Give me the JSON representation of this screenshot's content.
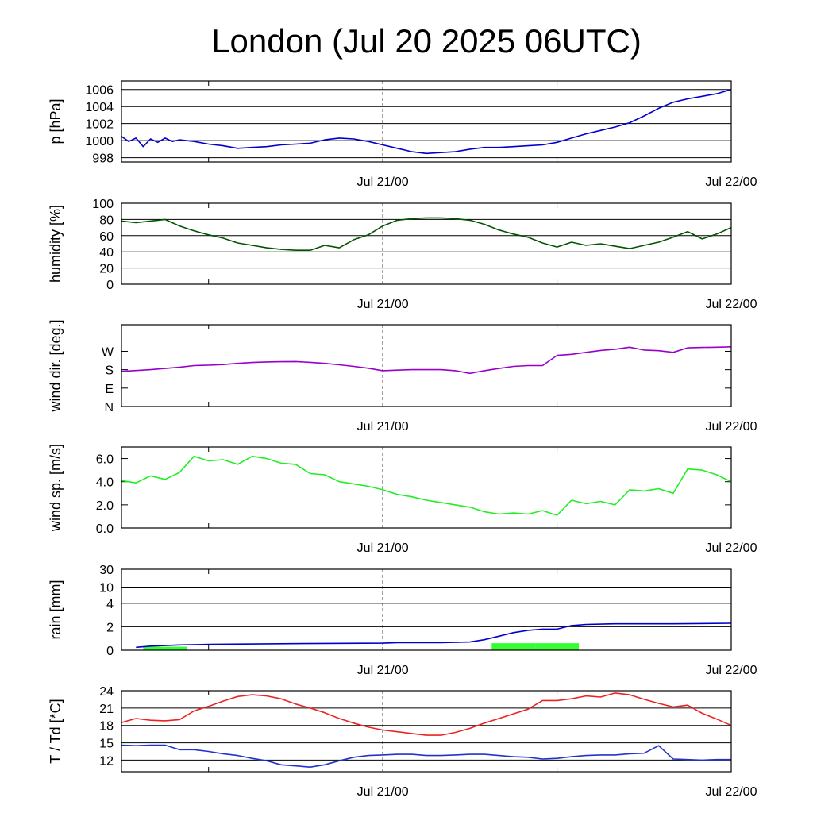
{
  "title": "London (Jul 20 2025 06UTC)",
  "time_axis": {
    "start_hour": 6,
    "end_hour": 48,
    "tick_labels": [
      {
        "hour": 24,
        "label": "Jul 21/00"
      },
      {
        "hour": 48,
        "label": "Jul 22/00"
      }
    ],
    "minor_ticks": [
      12,
      36
    ],
    "dashed_line_hour": 24
  },
  "chart_data": [
    {
      "type": "line",
      "ylabel": "p [hPa]",
      "ylim": [
        997.5,
        1007
      ],
      "yticks": [
        {
          "v": 998,
          "label": "998"
        },
        {
          "v": 1000,
          "label": "1000"
        },
        {
          "v": 1002,
          "label": "1002"
        },
        {
          "v": 1004,
          "label": "1004"
        },
        {
          "v": 1006,
          "label": "1006"
        }
      ],
      "grid": true,
      "series": [
        {
          "color": "#0000cc",
          "x": [
            6,
            6.5,
            7,
            7.5,
            8,
            8.5,
            9,
            9.5,
            10,
            11,
            12,
            13,
            14,
            15,
            16,
            17,
            18,
            19,
            20,
            21,
            22,
            23,
            24,
            25,
            26,
            27,
            28,
            29,
            30,
            31,
            32,
            33,
            34,
            35,
            36,
            37,
            38,
            39,
            40,
            41,
            42,
            43,
            44,
            45,
            46,
            47,
            48
          ],
          "y": [
            1000.5,
            999.9,
            1000.3,
            999.3,
            1000.2,
            999.8,
            1000.3,
            999.9,
            1000.1,
            999.9,
            999.6,
            999.4,
            999.1,
            999.2,
            999.3,
            999.5,
            999.6,
            999.7,
            1000.1,
            1000.3,
            1000.2,
            999.9,
            999.5,
            999.1,
            998.7,
            998.5,
            998.6,
            998.7,
            999.0,
            999.2,
            999.2,
            999.3,
            999.4,
            999.5,
            999.8,
            1000.3,
            1000.8,
            1001.2,
            1001.6,
            1002.1,
            1002.9,
            1003.8,
            1004.5,
            1004.9,
            1005.2,
            1005.5,
            1006.0
          ]
        }
      ]
    },
    {
      "type": "line",
      "ylabel": "humidity [%]",
      "ylim": [
        0,
        100
      ],
      "yticks": [
        {
          "v": 0,
          "label": "0"
        },
        {
          "v": 20,
          "label": "20"
        },
        {
          "v": 40,
          "label": "40"
        },
        {
          "v": 60,
          "label": "60"
        },
        {
          "v": 80,
          "label": "80"
        },
        {
          "v": 100,
          "label": "100"
        }
      ],
      "grid": true,
      "series": [
        {
          "color": "#005500",
          "x": [
            6,
            7,
            8,
            9,
            10,
            11,
            12,
            13,
            14,
            15,
            16,
            17,
            18,
            19,
            20,
            21,
            22,
            23,
            24,
            25,
            26,
            27,
            28,
            29,
            30,
            31,
            32,
            33,
            34,
            35,
            36,
            37,
            38,
            39,
            40,
            41,
            42,
            43,
            44,
            45,
            46,
            47,
            48
          ],
          "y": [
            78,
            76,
            78,
            80,
            72,
            66,
            61,
            57,
            51,
            48,
            45,
            43,
            42,
            42,
            48,
            45,
            55,
            61,
            72,
            79,
            81,
            82,
            82,
            81,
            79,
            74,
            67,
            62,
            58,
            51,
            46,
            52,
            48,
            50,
            47,
            44,
            48,
            52,
            58,
            65,
            56,
            62,
            70
          ]
        }
      ]
    },
    {
      "type": "line",
      "ylabel": "wind dir. [deg.]",
      "ylim": [
        0,
        400
      ],
      "yticks": [
        {
          "v": 0,
          "label": "N"
        },
        {
          "v": 90,
          "label": "E"
        },
        {
          "v": 180,
          "label": "S"
        },
        {
          "v": 270,
          "label": "W"
        }
      ],
      "grid": false,
      "series": [
        {
          "color": "#9900cc",
          "x": [
            6,
            7,
            8,
            9,
            10,
            11,
            12,
            13,
            14,
            15,
            16,
            17,
            18,
            19,
            20,
            21,
            22,
            23,
            24,
            25,
            26,
            27,
            28,
            29,
            30,
            31,
            32,
            33,
            34,
            35,
            36,
            37,
            38,
            39,
            40,
            41,
            42,
            43,
            44,
            45,
            46,
            47,
            48
          ],
          "y": [
            172,
            176,
            180,
            186,
            192,
            200,
            202,
            205,
            211,
            215,
            218,
            219,
            220,
            216,
            211,
            204,
            196,
            187,
            175,
            178,
            180,
            180,
            180,
            175,
            162,
            175,
            186,
            196,
            200,
            200,
            250,
            255,
            265,
            274,
            280,
            290,
            276,
            273,
            265,
            287,
            289,
            290,
            292
          ]
        }
      ]
    },
    {
      "type": "line",
      "ylabel": "wind sp. [m/s]",
      "ylim": [
        0,
        7
      ],
      "yticks": [
        {
          "v": 0,
          "label": "0.0"
        },
        {
          "v": 2,
          "label": "2.0"
        },
        {
          "v": 4,
          "label": "4.0"
        },
        {
          "v": 6,
          "label": "6.0"
        }
      ],
      "grid": false,
      "series": [
        {
          "color": "#22ee22",
          "x": [
            6,
            7,
            8,
            9,
            10,
            11,
            12,
            13,
            14,
            15,
            16,
            17,
            18,
            19,
            20,
            21,
            22,
            23,
            24,
            25,
            26,
            27,
            28,
            29,
            30,
            31,
            32,
            33,
            34,
            35,
            36,
            37,
            38,
            39,
            40,
            41,
            42,
            43,
            44,
            45,
            46,
            47,
            48
          ],
          "y": [
            4.1,
            3.9,
            4.5,
            4.2,
            4.8,
            6.2,
            5.8,
            5.9,
            5.5,
            6.2,
            6.0,
            5.6,
            5.5,
            4.7,
            4.6,
            4.0,
            3.8,
            3.6,
            3.3,
            2.9,
            2.7,
            2.4,
            2.2,
            2.0,
            1.8,
            1.4,
            1.2,
            1.3,
            1.2,
            1.5,
            1.1,
            2.4,
            2.1,
            2.3,
            2.0,
            3.3,
            3.2,
            3.4,
            3.0,
            5.1,
            5.0,
            4.6,
            4.0
          ]
        }
      ]
    },
    {
      "type": "bar+line",
      "ylabel": "rain [mm]",
      "ylim": [
        0,
        30
      ],
      "yticks": [
        {
          "v": 0,
          "label": "0"
        },
        {
          "v": 2,
          "label": "2"
        },
        {
          "v": 4,
          "label": "4"
        },
        {
          "v": 10,
          "label": "10"
        },
        {
          "v": 30,
          "label": "30"
        }
      ],
      "scale": "nonlinear",
      "grid": true,
      "bars": {
        "color": "#33ff33",
        "x_start": [
          7.5,
          31.5,
          34.5
        ],
        "x_end": [
          10.5,
          34.5,
          37.5
        ],
        "values": [
          0.3,
          0.6,
          0.6
        ]
      },
      "series": [
        {
          "color": "#0000cc",
          "x": [
            7,
            8,
            9,
            10,
            12,
            16,
            20,
            24,
            25,
            28,
            30,
            31,
            32,
            33,
            34,
            35,
            36,
            37,
            38,
            40,
            44,
            48
          ],
          "y": [
            0.25,
            0.35,
            0.4,
            0.45,
            0.5,
            0.55,
            0.58,
            0.6,
            0.65,
            0.65,
            0.7,
            0.9,
            1.2,
            1.5,
            1.7,
            1.8,
            1.8,
            2.1,
            2.2,
            2.25,
            2.25,
            2.3
          ]
        }
      ]
    },
    {
      "type": "line",
      "ylabel": "T / Td [*C]",
      "ylim": [
        10,
        24
      ],
      "yticks": [
        {
          "v": 12,
          "label": "12"
        },
        {
          "v": 15,
          "label": "15"
        },
        {
          "v": 18,
          "label": "18"
        },
        {
          "v": 21,
          "label": "21"
        },
        {
          "v": 24,
          "label": "24"
        }
      ],
      "grid": true,
      "series": [
        {
          "color": "#ee2222",
          "x": [
            6,
            7,
            8,
            9,
            10,
            11,
            12,
            13,
            14,
            15,
            16,
            17,
            18,
            19,
            20,
            21,
            22,
            23,
            24,
            25,
            26,
            27,
            28,
            29,
            30,
            31,
            32,
            33,
            34,
            35,
            36,
            37,
            38,
            39,
            40,
            41,
            42,
            43,
            44,
            45,
            46,
            47,
            48
          ],
          "y": [
            18.5,
            19.2,
            18.9,
            18.8,
            19.0,
            20.5,
            21.3,
            22.2,
            23.0,
            23.3,
            23.1,
            22.6,
            21.7,
            21.0,
            20.2,
            19.2,
            18.4,
            17.7,
            17.2,
            16.9,
            16.6,
            16.3,
            16.3,
            16.8,
            17.5,
            18.4,
            19.2,
            20.0,
            20.8,
            22.3,
            22.3,
            22.6,
            23.1,
            22.9,
            23.6,
            23.3,
            22.5,
            21.8,
            21.2,
            21.5,
            20.1,
            19.1,
            18.0
          ]
        },
        {
          "color": "#2233cc",
          "x": [
            6,
            7,
            8,
            9,
            10,
            11,
            12,
            13,
            14,
            15,
            16,
            17,
            18,
            19,
            20,
            21,
            22,
            23,
            24,
            25,
            26,
            27,
            28,
            29,
            30,
            31,
            32,
            33,
            34,
            35,
            36,
            37,
            38,
            39,
            40,
            41,
            42,
            43,
            44,
            45,
            46,
            47,
            48
          ],
          "y": [
            14.6,
            14.5,
            14.6,
            14.6,
            13.8,
            13.8,
            13.5,
            13.1,
            12.8,
            12.3,
            11.9,
            11.2,
            11.0,
            10.8,
            11.2,
            11.9,
            12.5,
            12.8,
            12.9,
            13.0,
            13.0,
            12.8,
            12.8,
            12.9,
            13.0,
            13.0,
            12.8,
            12.6,
            12.5,
            12.2,
            12.3,
            12.6,
            12.8,
            12.9,
            12.9,
            13.1,
            13.2,
            14.5,
            12.2,
            12.1,
            12.0,
            12.1,
            12.1
          ]
        }
      ]
    }
  ]
}
